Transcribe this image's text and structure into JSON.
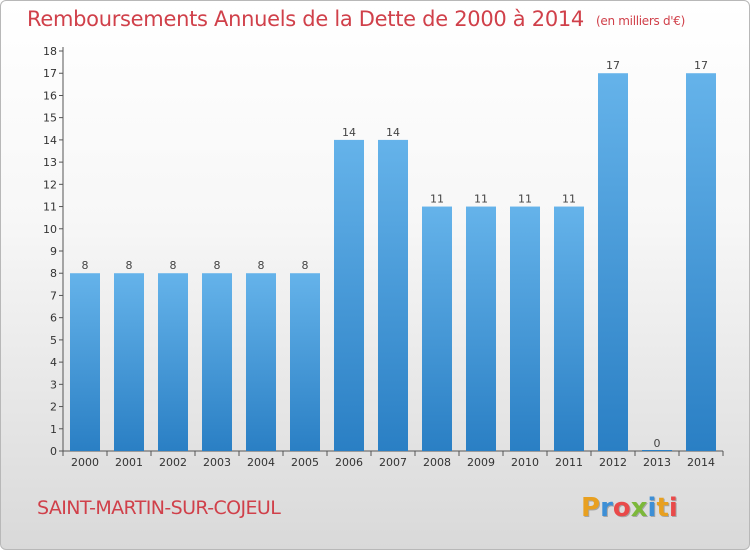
{
  "header": {
    "title": "Remboursements Annuels de la Dette de 2000 à 2014",
    "unit": "(en milliers d'€)"
  },
  "footer": {
    "commune": "SAINT-MARTIN-SUR-COJEUL",
    "logo_text": "Proxiti"
  },
  "colors": {
    "accent": "#d0404a",
    "bar_light": "#65b3ea",
    "bar_dark": "#2a7fc4"
  },
  "chart_data": {
    "type": "bar",
    "title": "Remboursements Annuels de la Dette de 2000 à 2014",
    "categories": [
      "2000",
      "2001",
      "2002",
      "2003",
      "2004",
      "2005",
      "2006",
      "2007",
      "2008",
      "2009",
      "2010",
      "2011",
      "2012",
      "2013",
      "2014"
    ],
    "values": [
      8,
      8,
      8,
      8,
      8,
      8,
      14,
      14,
      11,
      11,
      11,
      11,
      17,
      0,
      17
    ],
    "ylim": [
      0,
      18
    ],
    "yticks": [
      0,
      1,
      2,
      3,
      4,
      5,
      6,
      7,
      8,
      9,
      10,
      11,
      12,
      13,
      14,
      15,
      16,
      17,
      18
    ],
    "grid": false,
    "legend": "none"
  }
}
